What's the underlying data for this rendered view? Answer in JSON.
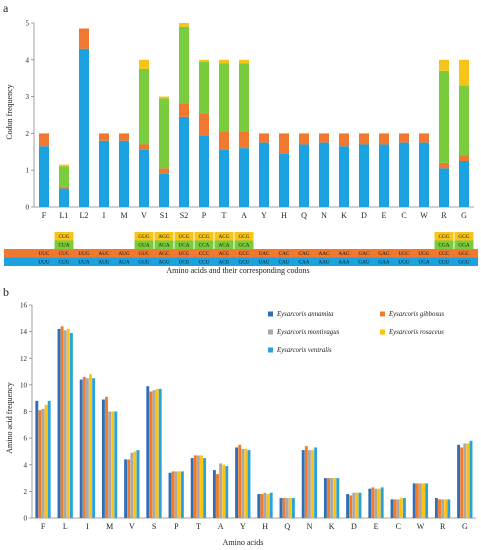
{
  "chart_data": [
    {
      "type": "bar",
      "panel": "a",
      "stacked": true,
      "ylabel": "Codon frequency",
      "xlabel": "Amino acids and their corresponding codons",
      "ylim": [
        0,
        5
      ],
      "yticks": [
        0,
        1,
        2,
        3,
        4,
        5
      ],
      "grid": false,
      "categories": [
        "F",
        "L1",
        "L2",
        "I",
        "M",
        "V",
        "S1",
        "S2",
        "P",
        "T",
        "A",
        "Y",
        "H",
        "Q",
        "N",
        "K",
        "D",
        "E",
        "C",
        "W",
        "R",
        "G"
      ],
      "series": [
        {
          "color": "#1aa3e0",
          "values": [
            1.65,
            0.5,
            4.3,
            1.8,
            1.8,
            1.55,
            0.9,
            2.45,
            1.95,
            1.55,
            1.6,
            1.75,
            1.45,
            1.7,
            1.75,
            1.65,
            1.7,
            1.7,
            1.75,
            1.75,
            1.05,
            1.25
          ]
        },
        {
          "color": "#f07830",
          "values": [
            0.35,
            0.05,
            0.55,
            0.2,
            0.2,
            0.15,
            0.15,
            0.35,
            0.6,
            0.5,
            0.45,
            0.25,
            0.55,
            0.3,
            0.25,
            0.35,
            0.3,
            0.3,
            0.25,
            0.25,
            0.15,
            0.15
          ]
        },
        {
          "color": "#79cc3c",
          "values": [
            0,
            0.55,
            0,
            0,
            0,
            2.05,
            1.9,
            2.1,
            1.4,
            1.85,
            1.85,
            0,
            0,
            0,
            0,
            0,
            0,
            0,
            0,
            0,
            2.5,
            1.9
          ]
        },
        {
          "color": "#f8c41a",
          "values": [
            0,
            0.05,
            0,
            0,
            0,
            0.25,
            0.05,
            0.1,
            0.05,
            0.1,
            0.1,
            0,
            0,
            0,
            0,
            0,
            0,
            0,
            0,
            0,
            0.3,
            0.7
          ]
        }
      ],
      "codons": {
        "row_colors": [
          "#1aa3e0",
          "#f07830",
          "#79cc3c",
          "#f8c41a"
        ],
        "F": [
          "UUU",
          "UUC",
          "",
          ""
        ],
        "L1": [
          "CUU",
          "CUC",
          "CUA",
          "CUG"
        ],
        "L2": [
          "UUA",
          "UUG",
          "",
          ""
        ],
        "I": [
          "AUU",
          "AUC",
          "",
          ""
        ],
        "M": [
          "AUA",
          "AUG",
          "",
          ""
        ],
        "V": [
          "GUU",
          "GUC",
          "GUA",
          "GUG"
        ],
        "S1": [
          "AGU",
          "AGC",
          "AGA",
          "AGG"
        ],
        "S2": [
          "UCU",
          "UCC",
          "UCA",
          "UCG"
        ],
        "P": [
          "CCU",
          "CCC",
          "CCA",
          "CCG"
        ],
        "T": [
          "ACU",
          "ACC",
          "ACA",
          "ACG"
        ],
        "A": [
          "GCU",
          "GCC",
          "GCA",
          "GCG"
        ],
        "Y": [
          "UAU",
          "UAC",
          "",
          ""
        ],
        "H": [
          "CAU",
          "CAC",
          "",
          ""
        ],
        "Q": [
          "CAA",
          "CAG",
          "",
          ""
        ],
        "N": [
          "AAU",
          "AAC",
          "",
          ""
        ],
        "K": [
          "AAA",
          "AAG",
          "",
          ""
        ],
        "D": [
          "GAU",
          "GAC",
          "",
          ""
        ],
        "E": [
          "GAA",
          "GAG",
          "",
          ""
        ],
        "C": [
          "UGU",
          "UGC",
          "",
          ""
        ],
        "W": [
          "UGA",
          "UGG",
          "",
          ""
        ],
        "R": [
          "CGU",
          "CGC",
          "CGA",
          "CGG"
        ],
        "G": [
          "GGU",
          "GGC",
          "GGA",
          "GGG"
        ]
      }
    },
    {
      "type": "bar",
      "panel": "b",
      "ylabel": "Amino acid frequency",
      "xlabel": "Amino acids",
      "ylim": [
        0,
        16
      ],
      "yticks": [
        0,
        2,
        4,
        6,
        8,
        10,
        12,
        14,
        16
      ],
      "grid": false,
      "legend_position": "top-right",
      "categories": [
        "F",
        "L",
        "I",
        "M",
        "V",
        "S",
        "P",
        "T",
        "A",
        "Y",
        "H",
        "Q",
        "N",
        "K",
        "D",
        "E",
        "C",
        "W",
        "R",
        "G"
      ],
      "series": [
        {
          "name": "Eysarcoris annamita",
          "color": "#2e6fb5",
          "values": [
            8.8,
            14.2,
            10.4,
            8.9,
            4.4,
            9.9,
            3.4,
            4.5,
            3.6,
            5.3,
            1.8,
            1.5,
            5.1,
            3.0,
            1.8,
            2.2,
            1.4,
            2.6,
            1.5,
            5.5
          ]
        },
        {
          "name": "Eysarcoris gibbosus",
          "color": "#f07c2a",
          "values": [
            8.1,
            14.4,
            10.6,
            9.1,
            4.4,
            9.5,
            3.5,
            4.7,
            3.3,
            5.5,
            1.8,
            1.5,
            5.4,
            3.0,
            1.7,
            2.3,
            1.4,
            2.6,
            1.4,
            5.3
          ]
        },
        {
          "name": "Eysarcoris montivagus",
          "color": "#a9a9a9",
          "values": [
            8.2,
            14.1,
            10.5,
            8.0,
            4.9,
            9.6,
            3.5,
            4.7,
            4.1,
            5.2,
            1.9,
            1.5,
            5.1,
            3.0,
            1.9,
            2.2,
            1.4,
            2.6,
            1.4,
            5.6
          ]
        },
        {
          "name": "Eysarcoris rosaceus",
          "color": "#ffc20e",
          "values": [
            8.5,
            14.2,
            10.8,
            8.0,
            5.0,
            9.7,
            3.5,
            4.7,
            4.0,
            5.2,
            1.8,
            1.5,
            5.1,
            3.0,
            1.9,
            2.2,
            1.5,
            2.6,
            1.4,
            5.6
          ]
        },
        {
          "name": "Eysarcoris ventralis",
          "color": "#2aa3d8",
          "values": [
            8.8,
            13.9,
            10.5,
            8.0,
            5.1,
            9.7,
            3.5,
            4.5,
            3.9,
            5.1,
            1.9,
            1.5,
            5.3,
            3.0,
            1.9,
            2.3,
            1.5,
            2.6,
            1.4,
            5.8
          ]
        }
      ]
    }
  ],
  "panel_a": {
    "letter": "a"
  },
  "panel_b": {
    "letter": "b"
  }
}
